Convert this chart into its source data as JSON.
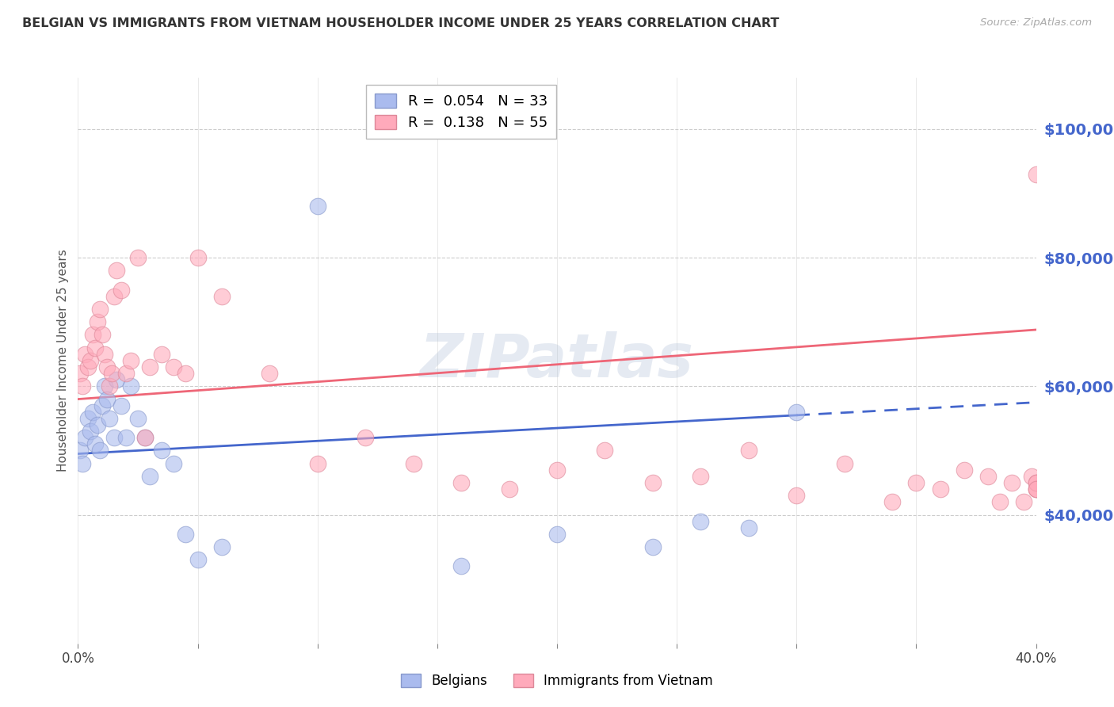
{
  "title": "BELGIAN VS IMMIGRANTS FROM VIETNAM HOUSEHOLDER INCOME UNDER 25 YEARS CORRELATION CHART",
  "source": "Source: ZipAtlas.com",
  "ylabel": "Householder Income Under 25 years",
  "ytick_labels": [
    "$100,000",
    "$80,000",
    "$60,000",
    "$40,000"
  ],
  "ytick_values": [
    100000,
    80000,
    60000,
    40000
  ],
  "blue_color": "#aabbee",
  "pink_color": "#ffaabb",
  "blue_line_color": "#4466cc",
  "pink_line_color": "#ee6677",
  "background_color": "#ffffff",
  "grid_color": "#cccccc",
  "title_color": "#333333",
  "axis_label_color": "#555555",
  "right_axis_color": "#4466cc",
  "xmin": 0.0,
  "xmax": 0.4,
  "ymin": 20000,
  "ymax": 108000,
  "belgians_x": [
    0.001,
    0.002,
    0.003,
    0.004,
    0.005,
    0.006,
    0.007,
    0.008,
    0.009,
    0.01,
    0.011,
    0.012,
    0.013,
    0.015,
    0.016,
    0.018,
    0.02,
    0.022,
    0.025,
    0.028,
    0.03,
    0.035,
    0.04,
    0.045,
    0.05,
    0.06,
    0.1,
    0.16,
    0.2,
    0.24,
    0.26,
    0.28,
    0.3
  ],
  "belgians_y": [
    50000,
    48000,
    52000,
    55000,
    53000,
    56000,
    51000,
    54000,
    50000,
    57000,
    60000,
    58000,
    55000,
    52000,
    61000,
    57000,
    52000,
    60000,
    55000,
    52000,
    46000,
    50000,
    48000,
    37000,
    33000,
    35000,
    88000,
    32000,
    37000,
    35000,
    39000,
    38000,
    56000
  ],
  "vietnam_x": [
    0.001,
    0.002,
    0.003,
    0.004,
    0.005,
    0.006,
    0.007,
    0.008,
    0.009,
    0.01,
    0.011,
    0.012,
    0.013,
    0.014,
    0.015,
    0.016,
    0.018,
    0.02,
    0.022,
    0.025,
    0.028,
    0.03,
    0.035,
    0.04,
    0.045,
    0.05,
    0.06,
    0.08,
    0.1,
    0.12,
    0.14,
    0.16,
    0.18,
    0.2,
    0.22,
    0.24,
    0.26,
    0.28,
    0.3,
    0.32,
    0.34,
    0.35,
    0.36,
    0.37,
    0.38,
    0.385,
    0.39,
    0.395,
    0.398,
    0.4,
    0.4,
    0.4,
    0.4,
    0.4,
    0.4
  ],
  "vietnam_y": [
    62000,
    60000,
    65000,
    63000,
    64000,
    68000,
    66000,
    70000,
    72000,
    68000,
    65000,
    63000,
    60000,
    62000,
    74000,
    78000,
    75000,
    62000,
    64000,
    80000,
    52000,
    63000,
    65000,
    63000,
    62000,
    80000,
    74000,
    62000,
    48000,
    52000,
    48000,
    45000,
    44000,
    47000,
    50000,
    45000,
    46000,
    50000,
    43000,
    48000,
    42000,
    45000,
    44000,
    47000,
    46000,
    42000,
    45000,
    42000,
    46000,
    44000,
    45000,
    44000,
    45000,
    93000,
    44000
  ]
}
